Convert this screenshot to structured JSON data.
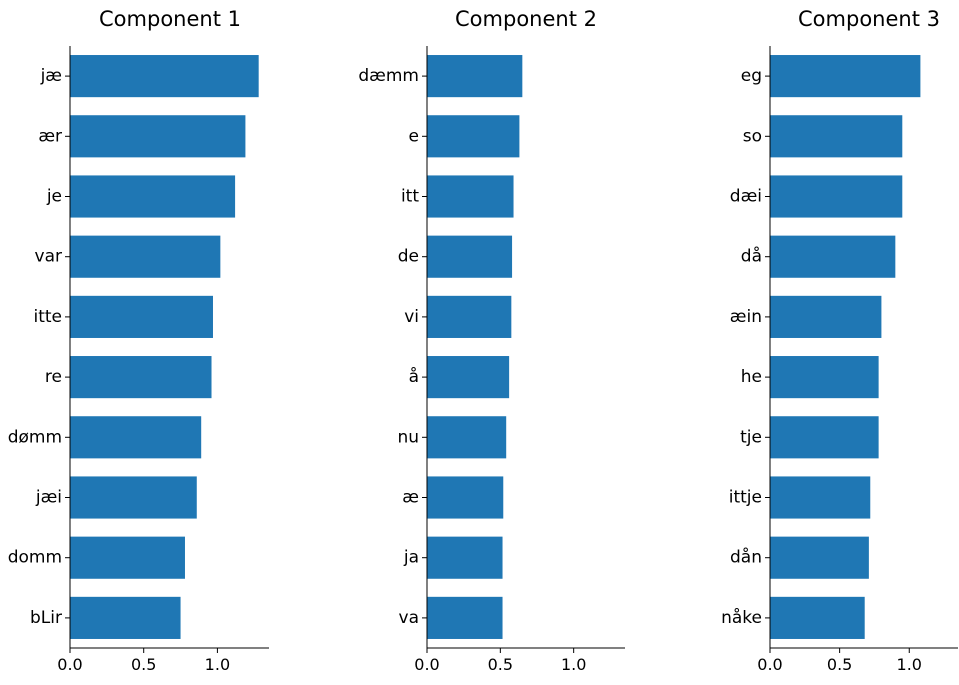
{
  "chart_data": [
    {
      "type": "bar",
      "orientation": "horizontal",
      "title": "Component 1",
      "categories": [
        "jæ",
        "ær",
        "je",
        "var",
        "itte",
        "re",
        "dømm",
        "jæi",
        "domm",
        "bLir"
      ],
      "values": [
        1.28,
        1.19,
        1.12,
        1.02,
        0.97,
        0.96,
        0.89,
        0.86,
        0.78,
        0.75
      ],
      "xlim": [
        0,
        1.35
      ],
      "xticks": [
        "0.0",
        "0.5",
        "1.0"
      ],
      "bar_color": "#1f77b4",
      "grid": false
    },
    {
      "type": "bar",
      "orientation": "horizontal",
      "title": "Component 2",
      "categories": [
        "dæmm",
        "e",
        "itt",
        "de",
        "vi",
        "å",
        "nu",
        "æ",
        "ja",
        "va"
      ],
      "values": [
        0.65,
        0.63,
        0.59,
        0.58,
        0.575,
        0.56,
        0.54,
        0.52,
        0.515,
        0.515
      ],
      "xlim": [
        0,
        1.35
      ],
      "xticks": [
        "0.0",
        "0.5",
        "1.0"
      ],
      "bar_color": "#1f77b4",
      "grid": false
    },
    {
      "type": "bar",
      "orientation": "horizontal",
      "title": "Component 3",
      "categories": [
        "eg",
        "so",
        "dæi",
        "då",
        "æin",
        "he",
        "tje",
        "ittje",
        "dån",
        "nåke"
      ],
      "values": [
        1.08,
        0.95,
        0.95,
        0.9,
        0.8,
        0.78,
        0.78,
        0.72,
        0.71,
        0.68
      ],
      "xlim": [
        0,
        1.35
      ],
      "xticks": [
        "0.0",
        "0.5",
        "1.0"
      ],
      "bar_color": "#1f77b4",
      "grid": false
    }
  ]
}
